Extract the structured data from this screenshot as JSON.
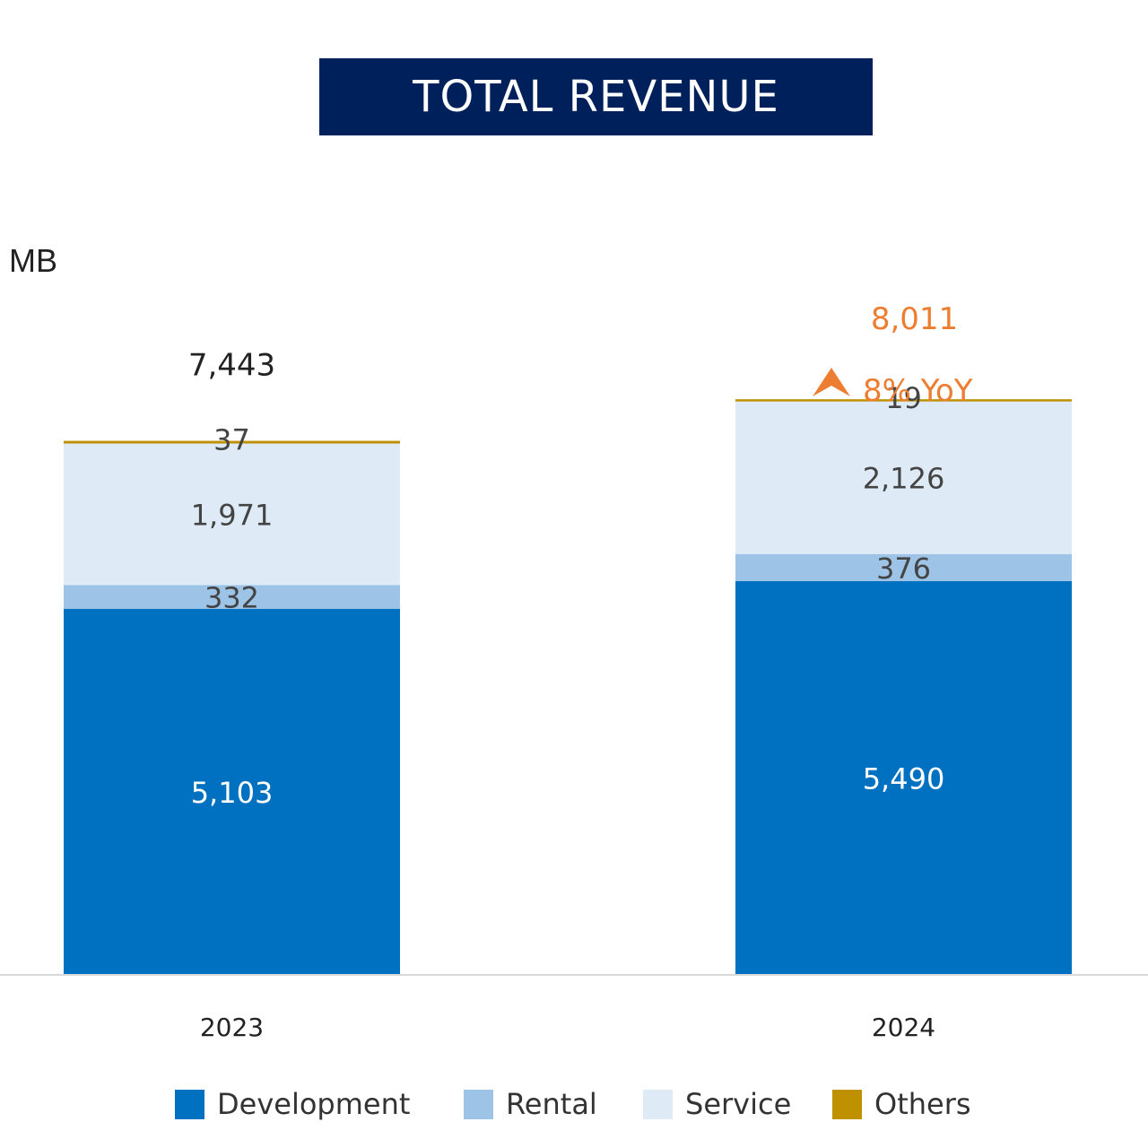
{
  "header": {
    "title": "TOTAL REVENUE"
  },
  "unit": "MB",
  "chart_data": {
    "type": "bar",
    "stacked": true,
    "categories": [
      "2023",
      "2024"
    ],
    "series": [
      {
        "name": "Development",
        "color": "#0070c0",
        "values": [
          5103,
          5490
        ],
        "labels": [
          "5,103",
          "5,490"
        ],
        "label_color": "#ffffff"
      },
      {
        "name": "Rental",
        "color": "#9dc3e6",
        "values": [
          332,
          376
        ],
        "labels": [
          "332",
          "376"
        ],
        "label_color": "#444444"
      },
      {
        "name": "Service",
        "color": "#deebf7",
        "values": [
          1971,
          2126
        ],
        "labels": [
          "1,971",
          "2,126"
        ],
        "label_color": "#444444"
      },
      {
        "name": "Others",
        "color": "#bf9000",
        "values": [
          37,
          19
        ],
        "labels": [
          "37",
          "19"
        ],
        "label_color": "#444444"
      }
    ],
    "totals": [
      "7,443",
      "8,011"
    ],
    "total_colors": [
      "#222222",
      "#ed7d31"
    ],
    "annotation": {
      "text": "8% YoY",
      "color": "#ed7d31",
      "icon": "up-arrow-icon"
    },
    "ylim": [
      0,
      10000
    ],
    "grid": false,
    "legend_position": "bottom"
  }
}
